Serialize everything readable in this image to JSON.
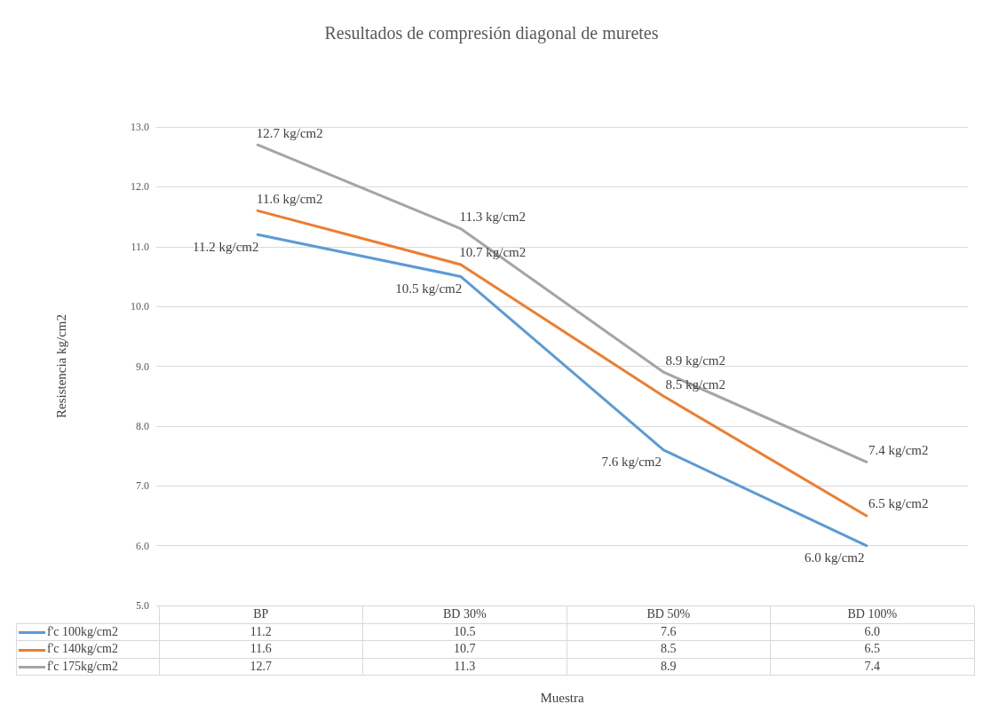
{
  "chart_data": {
    "type": "line",
    "title": "Resultados de compresión diagonal de muretes",
    "ylabel": "Resistencia kg/cm2",
    "categories": [
      "BP",
      "BD 30%",
      "BD 50%",
      "BD 100%"
    ],
    "series": [
      {
        "name": "f'c 100kg/cm2",
        "color": "#5b9bd5",
        "values": [
          11.2,
          10.5,
          7.6,
          6.0
        ],
        "value_labels": [
          "11.2 kg/cm2",
          "10.5 kg/cm2",
          "7.6 kg/cm2",
          "6.0 kg/cm2"
        ]
      },
      {
        "name": "f'c 140kg/cm2",
        "color": "#ed7d31",
        "values": [
          11.6,
          10.7,
          8.5,
          6.5
        ],
        "value_labels": [
          "11.6 kg/cm2",
          "10.7 kg/cm2",
          "8.5 kg/cm2",
          "6.5 kg/cm2"
        ]
      },
      {
        "name": "f'c 175kg/cm2",
        "color": "#a5a5a5",
        "values": [
          12.7,
          11.3,
          8.9,
          7.4
        ],
        "value_labels": [
          "12.7 kg/cm2",
          "11.3 kg/cm2",
          "8.9 kg/cm2",
          "7.4 kg/cm2"
        ]
      }
    ],
    "ylim": [
      5,
      13
    ],
    "yticks": [
      {
        "value": 5,
        "label": "5.0"
      },
      {
        "value": 6,
        "label": "6.0"
      },
      {
        "value": 7,
        "label": "7.0"
      },
      {
        "value": 8,
        "label": "8.0"
      },
      {
        "value": 9,
        "label": "9.0"
      },
      {
        "value": 10,
        "label": "10.0"
      },
      {
        "value": 11,
        "label": "11.0"
      },
      {
        "value": 12,
        "label": "12.0"
      },
      {
        "value": 13,
        "label": "13.0"
      }
    ],
    "annotations": [
      "11.2",
      "10.5",
      "7.6",
      "6.0",
      "11.6",
      "10.7",
      "8.5",
      "6.5",
      "12.7",
      "11.3",
      "8.9",
      "7.4",
      "Muestra"
    ],
    "grid": "y",
    "legend": "bottom",
    "marker": "none",
    "line_style": "solid"
  }
}
